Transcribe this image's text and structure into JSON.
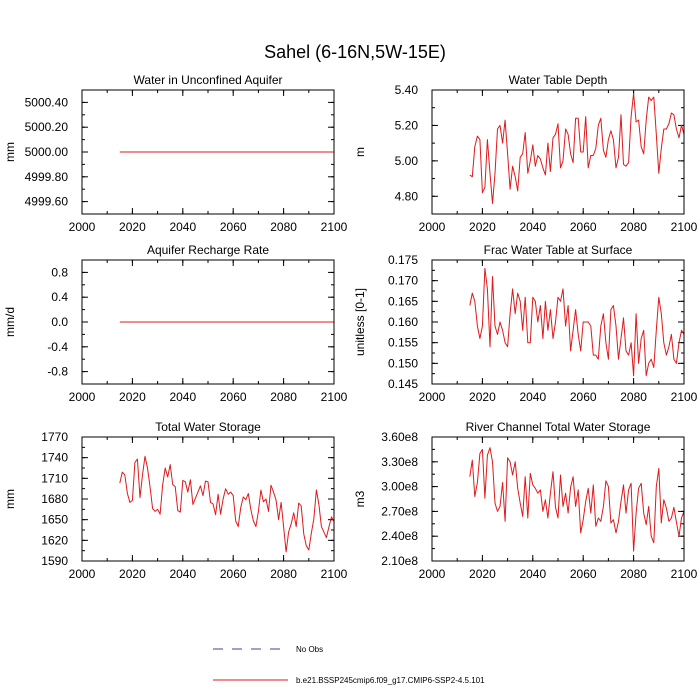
{
  "title": "Sahel (6-16N,5W-15E)",
  "colors": {
    "model": "#e0191b",
    "obs": "#4b3c8c",
    "frame": "#000000"
  },
  "legend": {
    "obs_label": "No Obs",
    "model_label": "b.e21.BSSP245cmip6.f09_g17.CMIP6-SSP2-4.5.101"
  },
  "chart_data": [
    {
      "type": "line",
      "title": "Water in Unconfined Aquifer",
      "ylabel": "mm",
      "xlim": [
        2000,
        2100
      ],
      "ylim": [
        4999.5,
        5000.5
      ],
      "xticks": [
        2000,
        2020,
        2040,
        2060,
        2080,
        2100
      ],
      "yticks": [
        4999.6,
        4999.8,
        5000.0,
        5000.2,
        5000.4
      ],
      "ytick_labels": [
        "4999.60",
        "4999.80",
        "5000.00",
        "5000.20",
        "5000.40"
      ],
      "series": [
        {
          "x": [
            2015,
            2100
          ],
          "y": [
            5000.0,
            5000.0
          ]
        }
      ]
    },
    {
      "type": "line",
      "title": "Water Table Depth",
      "ylabel": "m",
      "xlim": [
        2000,
        2100
      ],
      "ylim": [
        4.7,
        5.4
      ],
      "xticks": [
        2000,
        2020,
        2040,
        2060,
        2080,
        2100
      ],
      "yticks": [
        4.8,
        5.0,
        5.2,
        5.4
      ],
      "ytick_labels": [
        "4.80",
        "5.00",
        "5.20",
        "5.40"
      ],
      "series": [
        {
          "x": [
            2015,
            2016,
            2017,
            2018,
            2019,
            2020,
            2021,
            2022,
            2023,
            2024,
            2025,
            2026,
            2027,
            2028,
            2029,
            2030,
            2031,
            2032,
            2033,
            2034,
            2035,
            2036,
            2037,
            2038,
            2039,
            2040,
            2041,
            2042,
            2043,
            2044,
            2045,
            2046,
            2047,
            2048,
            2049,
            2050,
            2051,
            2052,
            2053,
            2054,
            2055,
            2056,
            2057,
            2058,
            2059,
            2060,
            2061,
            2062,
            2063,
            2064,
            2065,
            2066,
            2067,
            2068,
            2069,
            2070,
            2071,
            2072,
            2073,
            2074,
            2075,
            2076,
            2077,
            2078,
            2079,
            2080,
            2081,
            2082,
            2083,
            2084,
            2085,
            2086,
            2087,
            2088,
            2089,
            2090,
            2091,
            2092,
            2093,
            2094,
            2095,
            2096,
            2097,
            2098,
            2099,
            2100
          ],
          "y": [
            4.92,
            4.91,
            5.08,
            5.14,
            5.12,
            4.82,
            4.85,
            5.12,
            4.93,
            4.76,
            4.93,
            5.18,
            5.2,
            5.1,
            5.23,
            5.04,
            4.84,
            4.97,
            4.91,
            4.83,
            5.02,
            5.04,
            5.16,
            4.93,
            5.0,
            5.09,
            4.97,
            5.03,
            5.01,
            4.96,
            4.92,
            5.1,
            4.94,
            5.13,
            5.15,
            5.21,
            4.96,
            5.0,
            5.18,
            5.15,
            5.04,
            4.99,
            5.24,
            5.24,
            5.05,
            5.05,
            5.25,
            4.96,
            5.03,
            5.03,
            5.07,
            5.2,
            5.24,
            5.06,
            5.02,
            5.12,
            5.17,
            5.12,
            4.96,
            5.02,
            5.26,
            4.98,
            4.97,
            4.99,
            5.25,
            5.38,
            5.22,
            5.23,
            5.08,
            5.04,
            5.23,
            5.36,
            5.34,
            5.36,
            5.15,
            4.93,
            5.07,
            5.18,
            5.18,
            5.21,
            5.27,
            5.26,
            5.18,
            5.13,
            5.2,
            5.15
          ]
        }
      ]
    },
    {
      "type": "line",
      "title": "Aquifer Recharge Rate",
      "ylabel": "mm/d",
      "xlim": [
        2000,
        2100
      ],
      "ylim": [
        -1.0,
        1.0
      ],
      "xticks": [
        2000,
        2020,
        2040,
        2060,
        2080,
        2100
      ],
      "yticks": [
        -0.8,
        -0.4,
        0.0,
        0.4,
        0.8
      ],
      "ytick_labels": [
        "-0.8",
        "-0.4",
        "0.0",
        "0.4",
        "0.8"
      ],
      "series": [
        {
          "x": [
            2015,
            2100
          ],
          "y": [
            0.0,
            0.0
          ]
        }
      ]
    },
    {
      "type": "line",
      "title": "Frac Water Table at Surface",
      "ylabel": "unitless [0-1]",
      "xlim": [
        2000,
        2100
      ],
      "ylim": [
        0.145,
        0.175
      ],
      "xticks": [
        2000,
        2020,
        2040,
        2060,
        2080,
        2100
      ],
      "yticks": [
        0.145,
        0.15,
        0.155,
        0.16,
        0.165,
        0.17,
        0.175
      ],
      "ytick_labels": [
        "0.145",
        "0.150",
        "0.155",
        "0.160",
        "0.165",
        "0.170",
        "0.175"
      ],
      "series": [
        {
          "x": [
            2015,
            2016,
            2017,
            2018,
            2019,
            2020,
            2021,
            2022,
            2023,
            2024,
            2025,
            2026,
            2027,
            2028,
            2029,
            2030,
            2031,
            2032,
            2033,
            2034,
            2035,
            2036,
            2037,
            2038,
            2039,
            2040,
            2041,
            2042,
            2043,
            2044,
            2045,
            2046,
            2047,
            2048,
            2049,
            2050,
            2051,
            2052,
            2053,
            2054,
            2055,
            2056,
            2057,
            2058,
            2059,
            2060,
            2061,
            2062,
            2063,
            2064,
            2065,
            2066,
            2067,
            2068,
            2069,
            2070,
            2071,
            2072,
            2073,
            2074,
            2075,
            2076,
            2077,
            2078,
            2079,
            2080,
            2081,
            2082,
            2083,
            2084,
            2085,
            2086,
            2087,
            2088,
            2089,
            2090,
            2091,
            2092,
            2093,
            2094,
            2095,
            2096,
            2097,
            2098,
            2099,
            2100
          ],
          "y": [
            0.164,
            0.167,
            0.165,
            0.159,
            0.156,
            0.159,
            0.173,
            0.168,
            0.154,
            0.171,
            0.159,
            0.157,
            0.16,
            0.158,
            0.155,
            0.154,
            0.162,
            0.168,
            0.162,
            0.167,
            0.165,
            0.158,
            0.166,
            0.155,
            0.155,
            0.166,
            0.165,
            0.16,
            0.164,
            0.156,
            0.165,
            0.158,
            0.163,
            0.156,
            0.16,
            0.166,
            0.165,
            0.168,
            0.159,
            0.164,
            0.153,
            0.158,
            0.163,
            0.157,
            0.153,
            0.16,
            0.16,
            0.16,
            0.159,
            0.152,
            0.152,
            0.151,
            0.159,
            0.162,
            0.155,
            0.151,
            0.163,
            0.164,
            0.159,
            0.151,
            0.156,
            0.161,
            0.153,
            0.152,
            0.155,
            0.147,
            0.162,
            0.15,
            0.156,
            0.158,
            0.147,
            0.15,
            0.151,
            0.149,
            0.158,
            0.166,
            0.162,
            0.155,
            0.152,
            0.154,
            0.157,
            0.151,
            0.15,
            0.155,
            0.158,
            0.157
          ]
        }
      ]
    },
    {
      "type": "line",
      "title": "Total Water Storage",
      "ylabel": "mm",
      "xlim": [
        2000,
        2100
      ],
      "ylim": [
        1590,
        1770
      ],
      "xticks": [
        2000,
        2020,
        2040,
        2060,
        2080,
        2100
      ],
      "yticks": [
        1590,
        1620,
        1650,
        1680,
        1710,
        1740,
        1770
      ],
      "ytick_labels": [
        "1590",
        "1620",
        "1650",
        "1680",
        "1710",
        "1740",
        "1770"
      ],
      "series": [
        {
          "x": [
            2015,
            2016,
            2017,
            2018,
            2019,
            2020,
            2021,
            2022,
            2023,
            2024,
            2025,
            2026,
            2027,
            2028,
            2029,
            2030,
            2031,
            2032,
            2033,
            2034,
            2035,
            2036,
            2037,
            2038,
            2039,
            2040,
            2041,
            2042,
            2043,
            2044,
            2045,
            2046,
            2047,
            2048,
            2049,
            2050,
            2051,
            2052,
            2053,
            2054,
            2055,
            2056,
            2057,
            2058,
            2059,
            2060,
            2061,
            2062,
            2063,
            2064,
            2065,
            2066,
            2067,
            2068,
            2069,
            2070,
            2071,
            2072,
            2073,
            2074,
            2075,
            2076,
            2077,
            2078,
            2079,
            2080,
            2081,
            2082,
            2083,
            2084,
            2085,
            2086,
            2087,
            2088,
            2089,
            2090,
            2091,
            2092,
            2093,
            2094,
            2095,
            2096,
            2097,
            2098,
            2099,
            2100
          ],
          "y": [
            1703,
            1719,
            1715,
            1688,
            1675,
            1678,
            1733,
            1738,
            1682,
            1715,
            1742,
            1725,
            1698,
            1666,
            1662,
            1665,
            1658,
            1700,
            1725,
            1712,
            1730,
            1701,
            1698,
            1663,
            1661,
            1707,
            1705,
            1690,
            1708,
            1672,
            1681,
            1690,
            1699,
            1685,
            1706,
            1705,
            1675,
            1673,
            1657,
            1687,
            1658,
            1680,
            1695,
            1687,
            1690,
            1685,
            1648,
            1640,
            1668,
            1683,
            1679,
            1688,
            1665,
            1648,
            1640,
            1662,
            1693,
            1676,
            1680,
            1662,
            1700,
            1690,
            1679,
            1650,
            1675,
            1640,
            1603,
            1632,
            1644,
            1660,
            1640,
            1674,
            1670,
            1629,
            1612,
            1606,
            1630,
            1651,
            1693,
            1672,
            1640,
            1632,
            1624,
            1640,
            1654,
            1647
          ]
        }
      ]
    },
    {
      "type": "line",
      "title": "River Channel Total Water Storage",
      "ylabel": "m3",
      "xlim": [
        2000,
        2100
      ],
      "ylim": [
        210000000,
        360000000
      ],
      "xticks": [
        2000,
        2020,
        2040,
        2060,
        2080,
        2100
      ],
      "yticks": [
        210000000,
        240000000,
        270000000,
        300000000,
        330000000,
        360000000
      ],
      "ytick_labels": [
        "2.10e8",
        "2.40e8",
        "2.70e8",
        "3.00e8",
        "3.30e8",
        "3.60e8"
      ],
      "series": [
        {
          "x": [
            2015,
            2016,
            2017,
            2018,
            2019,
            2020,
            2021,
            2022,
            2023,
            2024,
            2025,
            2026,
            2027,
            2028,
            2029,
            2030,
            2031,
            2032,
            2033,
            2034,
            2035,
            2036,
            2037,
            2038,
            2039,
            2040,
            2041,
            2042,
            2043,
            2044,
            2045,
            2046,
            2047,
            2048,
            2049,
            2050,
            2051,
            2052,
            2053,
            2054,
            2055,
            2056,
            2057,
            2058,
            2059,
            2060,
            2061,
            2062,
            2063,
            2064,
            2065,
            2066,
            2067,
            2068,
            2069,
            2070,
            2071,
            2072,
            2073,
            2074,
            2075,
            2076,
            2077,
            2078,
            2079,
            2080,
            2081,
            2082,
            2083,
            2084,
            2085,
            2086,
            2087,
            2088,
            2089,
            2090,
            2091,
            2092,
            2093,
            2094,
            2095,
            2096,
            2097,
            2098,
            2099,
            2100
          ],
          "y": [
            312000000,
            332000000,
            288000000,
            305000000,
            340000000,
            345000000,
            286000000,
            338000000,
            347000000,
            330000000,
            280000000,
            270000000,
            276000000,
            305000000,
            258000000,
            335000000,
            330000000,
            314000000,
            330000000,
            298000000,
            280000000,
            264000000,
            312000000,
            262000000,
            316000000,
            302000000,
            298000000,
            292000000,
            296000000,
            270000000,
            284000000,
            262000000,
            292000000,
            318000000,
            275000000,
            262000000,
            314000000,
            276000000,
            292000000,
            268000000,
            299000000,
            312000000,
            276000000,
            296000000,
            244000000,
            260000000,
            282000000,
            298000000,
            268000000,
            302000000,
            252000000,
            262000000,
            258000000,
            276000000,
            307000000,
            300000000,
            256000000,
            260000000,
            244000000,
            258000000,
            282000000,
            302000000,
            268000000,
            296000000,
            304000000,
            222000000,
            268000000,
            298000000,
            304000000,
            268000000,
            254000000,
            276000000,
            240000000,
            232000000,
            300000000,
            322000000,
            256000000,
            284000000,
            274000000,
            258000000,
            262000000,
            275000000,
            257000000,
            240000000,
            262000000,
            270000000
          ]
        }
      ]
    }
  ]
}
